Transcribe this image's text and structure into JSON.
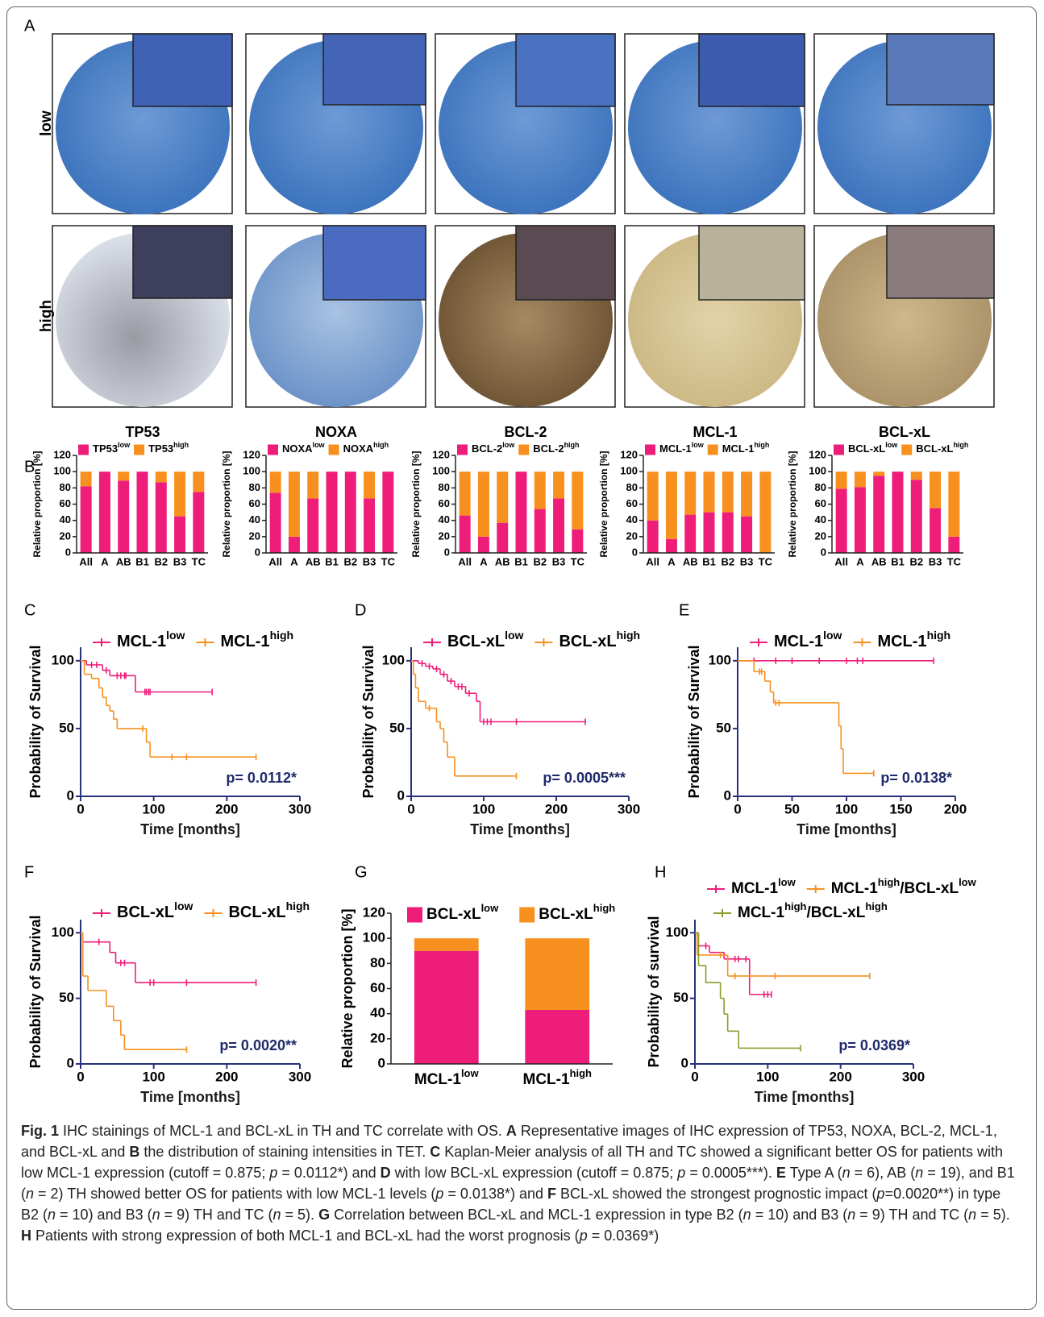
{
  "panel_labels": [
    "A",
    "B",
    "C",
    "D",
    "E",
    "F",
    "G",
    "H"
  ],
  "panel_a": {
    "row_labels": [
      "low",
      "high"
    ],
    "column_labels": [
      "TP53",
      "NOXA",
      "BCL-2",
      "MCL-1",
      "BCL-xL"
    ]
  },
  "chart_data": [
    {
      "type": "stacked_bar",
      "categories": [
        "All",
        "A",
        "AB",
        "B1",
        "B2",
        "B3",
        "TC"
      ],
      "ylabel": "Relative proportion [%]",
      "ylim": [
        0,
        120
      ],
      "yticks": [
        0,
        20,
        40,
        60,
        80,
        100,
        120
      ],
      "series": [
        {
          "name_parts": [
            "TP53",
            "low"
          ],
          "color": "#ee1d7a",
          "values": [
            82,
            100,
            89,
            100,
            87,
            45,
            75
          ]
        },
        {
          "name_parts": [
            "TP53",
            "high"
          ],
          "color": "#f7901e",
          "values": [
            18,
            0,
            11,
            0,
            13,
            55,
            25
          ]
        }
      ]
    },
    {
      "type": "stacked_bar",
      "categories": [
        "All",
        "A",
        "AB",
        "B1",
        "B2",
        "B3",
        "TC"
      ],
      "ylabel": "Relative proportion [%]",
      "ylim": [
        0,
        120
      ],
      "yticks": [
        0,
        20,
        40,
        60,
        80,
        100,
        120
      ],
      "series": [
        {
          "name_parts": [
            "NOXA",
            "low"
          ],
          "color": "#ee1d7a",
          "values": [
            74,
            20,
            67,
            100,
            100,
            67,
            100
          ]
        },
        {
          "name_parts": [
            "NOXA",
            "high"
          ],
          "color": "#f7901e",
          "values": [
            26,
            80,
            33,
            0,
            0,
            33,
            0
          ]
        }
      ]
    },
    {
      "type": "stacked_bar",
      "categories": [
        "All",
        "A",
        "AB",
        "B1",
        "B2",
        "B3",
        "TC"
      ],
      "ylabel": "Relative proportion [%]",
      "ylim": [
        0,
        120
      ],
      "yticks": [
        0,
        20,
        40,
        60,
        80,
        100,
        120
      ],
      "series": [
        {
          "name_parts": [
            "BCL-2",
            "low"
          ],
          "color": "#ee1d7a",
          "values": [
            46,
            20,
            37,
            100,
            54,
            67,
            29
          ]
        },
        {
          "name_parts": [
            "BCL-2",
            "high"
          ],
          "color": "#f7901e",
          "values": [
            54,
            80,
            63,
            0,
            46,
            33,
            71
          ]
        }
      ]
    },
    {
      "type": "stacked_bar",
      "categories": [
        "All",
        "A",
        "AB",
        "B1",
        "B2",
        "B3",
        "TC"
      ],
      "ylabel": "Relative proportion [%]",
      "ylim": [
        0,
        120
      ],
      "yticks": [
        0,
        20,
        40,
        60,
        80,
        100,
        120
      ],
      "series": [
        {
          "name_parts": [
            "MCL-1",
            "low"
          ],
          "color": "#ee1d7a",
          "values": [
            40,
            17,
            47,
            50,
            50,
            45,
            0
          ]
        },
        {
          "name_parts": [
            "MCL-1",
            "high"
          ],
          "color": "#f7901e",
          "values": [
            60,
            83,
            53,
            50,
            50,
            55,
            100
          ]
        }
      ]
    },
    {
      "type": "stacked_bar",
      "categories": [
        "All",
        "A",
        "AB",
        "B1",
        "B2",
        "B3",
        "TC"
      ],
      "ylabel": "Relative proportion [%]",
      "ylim": [
        0,
        120
      ],
      "yticks": [
        0,
        20,
        40,
        60,
        80,
        100,
        120
      ],
      "series": [
        {
          "name_parts": [
            "BCL-xL",
            "low"
          ],
          "color": "#ee1d7a",
          "values": [
            79,
            81,
            95,
            100,
            90,
            55,
            20
          ]
        },
        {
          "name_parts": [
            "BCL-xL",
            "high"
          ],
          "color": "#f7901e",
          "values": [
            21,
            19,
            5,
            0,
            10,
            45,
            80
          ]
        }
      ]
    },
    {
      "type": "line",
      "step": true,
      "xlabel": "Time [months]",
      "ylabel": "Probability of Survival",
      "annotation": "p= 0.0112*",
      "xlim": [
        0,
        300
      ],
      "xticks": [
        0,
        100,
        200,
        300
      ],
      "ylim": [
        0,
        110
      ],
      "yticks": [
        0,
        50,
        100
      ],
      "series": [
        {
          "name_parts": [
            "MCL-1",
            "low"
          ],
          "color": "#ee1d7a",
          "x": [
            0,
            8,
            30,
            40,
            75,
            180
          ],
          "values": [
            100,
            97,
            93,
            89,
            77,
            77
          ],
          "censor_x": [
            15,
            22,
            35,
            50,
            55,
            60,
            62,
            88,
            90,
            93,
            95,
            180
          ],
          "censor_values": [
            97,
            97,
            93,
            89,
            89,
            89,
            89,
            77,
            77,
            77,
            77,
            77
          ]
        },
        {
          "name_parts": [
            "MCL-1",
            "high"
          ],
          "color": "#f7901e",
          "x": [
            0,
            5,
            15,
            25,
            30,
            35,
            40,
            45,
            50,
            90,
            95,
            240
          ],
          "values": [
            100,
            90,
            87,
            80,
            73,
            67,
            63,
            57,
            50,
            40,
            29,
            29
          ],
          "censor_x": [
            85,
            125,
            145,
            240
          ],
          "censor_values": [
            50,
            29,
            29,
            29
          ]
        }
      ]
    },
    {
      "type": "line",
      "step": true,
      "xlabel": "Time [months]",
      "ylabel": "Probability of Survival",
      "annotation": "p= 0.0005***",
      "xlim": [
        0,
        300
      ],
      "xticks": [
        0,
        100,
        200,
        300
      ],
      "ylim": [
        0,
        110
      ],
      "yticks": [
        0,
        50,
        100
      ],
      "series": [
        {
          "name_parts": [
            "BCL-xL",
            "low"
          ],
          "color": "#ee1d7a",
          "x": [
            0,
            10,
            20,
            30,
            40,
            50,
            60,
            75,
            90,
            95,
            240
          ],
          "values": [
            100,
            98,
            96,
            94,
            90,
            85,
            81,
            76,
            70,
            55,
            55
          ],
          "censor_x": [
            15,
            25,
            35,
            45,
            55,
            65,
            70,
            80,
            100,
            105,
            110,
            145,
            240
          ],
          "censor_values": [
            98,
            96,
            94,
            90,
            85,
            81,
            81,
            76,
            55,
            55,
            55,
            55,
            55
          ]
        },
        {
          "name_parts": [
            "BCL-xL",
            "high"
          ],
          "color": "#f7901e",
          "x": [
            0,
            3,
            6,
            10,
            20,
            35,
            40,
            45,
            50,
            60,
            145
          ],
          "values": [
            100,
            90,
            80,
            70,
            65,
            55,
            50,
            40,
            29,
            15,
            15
          ],
          "censor_x": [
            25,
            145
          ],
          "censor_values": [
            65,
            15
          ]
        }
      ]
    },
    {
      "type": "line",
      "step": true,
      "xlabel": "Time [months]",
      "ylabel": "Probability of Survival",
      "annotation": "p= 0.0138*",
      "xlim": [
        0,
        200
      ],
      "xticks": [
        0,
        50,
        100,
        150,
        200
      ],
      "ylim": [
        0,
        110
      ],
      "yticks": [
        0,
        50,
        100
      ],
      "series": [
        {
          "name_parts": [
            "MCL-1",
            "low"
          ],
          "color": "#ee1d7a",
          "x": [
            0,
            180
          ],
          "values": [
            100,
            100
          ],
          "censor_x": [
            15,
            35,
            50,
            75,
            100,
            110,
            115,
            180
          ],
          "censor_values": [
            100,
            100,
            100,
            100,
            100,
            100,
            100,
            100
          ]
        },
        {
          "name_parts": [
            "MCL-1",
            "high"
          ],
          "color": "#f7901e",
          "x": [
            0,
            15,
            25,
            30,
            33,
            93,
            95,
            97,
            125
          ],
          "values": [
            100,
            92,
            85,
            77,
            69,
            52,
            35,
            17,
            17
          ],
          "censor_x": [
            20,
            22,
            35,
            38,
            125
          ],
          "censor_values": [
            92,
            92,
            69,
            69,
            17
          ]
        }
      ]
    },
    {
      "type": "line",
      "step": true,
      "xlabel": "Time [months]",
      "ylabel": "Probability of Survival",
      "annotation": "p= 0.0020**",
      "xlim": [
        0,
        300
      ],
      "xticks": [
        0,
        100,
        200,
        300
      ],
      "ylim": [
        0,
        110
      ],
      "yticks": [
        0,
        50,
        100
      ],
      "series": [
        {
          "name_parts": [
            "BCL-xL",
            "low"
          ],
          "color": "#ee1d7a",
          "x": [
            0,
            3,
            40,
            48,
            75,
            240
          ],
          "values": [
            100,
            93,
            85,
            77,
            62,
            62
          ],
          "censor_x": [
            25,
            55,
            60,
            95,
            100,
            145,
            240
          ],
          "censor_values": [
            93,
            77,
            77,
            62,
            62,
            62,
            62
          ]
        },
        {
          "name_parts": [
            "BCL-xL",
            "high"
          ],
          "color": "#f7901e",
          "x": [
            0,
            3,
            10,
            35,
            45,
            55,
            60,
            145
          ],
          "values": [
            100,
            67,
            56,
            44,
            33,
            22,
            11,
            11
          ],
          "censor_x": [
            145
          ],
          "censor_values": [
            11
          ]
        }
      ]
    },
    {
      "type": "stacked_bar",
      "categories": [
        "MCL-1",
        "MCL-1"
      ],
      "category_sups": [
        "low",
        "high"
      ],
      "ylabel": "Relative proportion [%]",
      "ylim": [
        0,
        120
      ],
      "yticks": [
        0,
        20,
        40,
        60,
        80,
        100,
        120
      ],
      "series": [
        {
          "name_parts": [
            "BCL-xL",
            "low"
          ],
          "color": "#ee1d7a",
          "values": [
            90,
            43
          ]
        },
        {
          "name_parts": [
            "BCL-xL",
            "high"
          ],
          "color": "#f7901e",
          "values": [
            10,
            57
          ]
        }
      ]
    },
    {
      "type": "line",
      "step": true,
      "xlabel": "Time [months]",
      "ylabel": "Probability of survival",
      "annotation": "p= 0.0369*",
      "xlim": [
        0,
        300
      ],
      "xticks": [
        0,
        100,
        200,
        300
      ],
      "ylim": [
        0,
        110
      ],
      "yticks": [
        0,
        50,
        100
      ],
      "series": [
        {
          "name_parts": [
            "MCL-1",
            "low"
          ],
          "color": "#ee1d7a",
          "x": [
            0,
            3,
            20,
            40,
            75,
            105
          ],
          "values": [
            100,
            90,
            85,
            80,
            53,
            53
          ],
          "censor_x": [
            15,
            45,
            55,
            60,
            70,
            95,
            100,
            105
          ],
          "censor_values": [
            90,
            80,
            80,
            80,
            80,
            53,
            53,
            53
          ]
        },
        {
          "name_parts": [
            "MCL-1",
            "high",
            "/BCL-xL",
            "low"
          ],
          "color": "#f7901e",
          "x": [
            0,
            3,
            45,
            240
          ],
          "values": [
            100,
            83,
            67,
            67
          ],
          "censor_x": [
            35,
            55,
            110,
            240
          ],
          "censor_values": [
            83,
            67,
            67,
            67
          ]
        },
        {
          "name_parts": [
            "MCL-1",
            "high",
            "/BCL-xL",
            "high"
          ],
          "color": "#8f9a2a",
          "x": [
            0,
            5,
            15,
            35,
            40,
            45,
            60,
            145
          ],
          "values": [
            100,
            75,
            62,
            50,
            38,
            25,
            12,
            12
          ],
          "censor_x": [
            145
          ],
          "censor_values": [
            12
          ]
        }
      ]
    }
  ],
  "caption": [
    {
      "text": "Fig. 1",
      "style": "b"
    },
    {
      "text": " IHC stainings of MCL-1 and BCL-xL in TH and TC correlate with OS. ",
      "style": "r"
    },
    {
      "text": "A",
      "style": "b"
    },
    {
      "text": " Representative images of IHC expression of TP53, NOXA, BCL-2, MCL-1, and BCL-xL and ",
      "style": "r"
    },
    {
      "text": "B",
      "style": "b"
    },
    {
      "text": " the distribution of staining intensities in TET. ",
      "style": "r"
    },
    {
      "text": "C",
      "style": "b"
    },
    {
      "text": " Kaplan-Meier analysis of all TH and TC showed a significant better OS for patients with low MCL-1 expression (cutoff = 0.875; ",
      "style": "r"
    },
    {
      "text": "p",
      "style": "i"
    },
    {
      "text": " = 0.0112*) and ",
      "style": "r"
    },
    {
      "text": "D",
      "style": "b"
    },
    {
      "text": " with low BCL-xL expression (cutoff = 0.875; ",
      "style": "r"
    },
    {
      "text": "p",
      "style": "i"
    },
    {
      "text": " = 0.0005***). ",
      "style": "r"
    },
    {
      "text": "E",
      "style": "b"
    },
    {
      "text": " Type A (",
      "style": "r"
    },
    {
      "text": "n",
      "style": "i"
    },
    {
      "text": " = 6), AB (",
      "style": "r"
    },
    {
      "text": "n",
      "style": "i"
    },
    {
      "text": " = 19), and B1 (",
      "style": "r"
    },
    {
      "text": "n",
      "style": "i"
    },
    {
      "text": " = 2) TH showed better OS for patients with low MCL-1 levels (",
      "style": "r"
    },
    {
      "text": "p",
      "style": "i"
    },
    {
      "text": " = 0.0138*) and ",
      "style": "r"
    },
    {
      "text": "F",
      "style": "b"
    },
    {
      "text": " BCL-xL showed the strongest prognostic impact (",
      "style": "r"
    },
    {
      "text": "p",
      "style": "i"
    },
    {
      "text": "=0.0020**) in type B2 (",
      "style": "r"
    },
    {
      "text": "n",
      "style": "i"
    },
    {
      "text": " = 10) and B3 (",
      "style": "r"
    },
    {
      "text": "n",
      "style": "i"
    },
    {
      "text": " = 9) TH and TC (",
      "style": "r"
    },
    {
      "text": "n",
      "style": "i"
    },
    {
      "text": " = 5). ",
      "style": "r"
    },
    {
      "text": "G",
      "style": "b"
    },
    {
      "text": " Correlation between BCL-xL and MCL-1 expression in type B2 (",
      "style": "r"
    },
    {
      "text": "n",
      "style": "i"
    },
    {
      "text": " = 10) and B3 (",
      "style": "r"
    },
    {
      "text": "n",
      "style": "i"
    },
    {
      "text": " = 9) TH and TC (",
      "style": "r"
    },
    {
      "text": "n",
      "style": "i"
    },
    {
      "text": " = 5). ",
      "style": "r"
    },
    {
      "text": "H",
      "style": "b"
    },
    {
      "text": " Patients with strong expression of both MCL-1 and BCL-xL had the worst prognosis (",
      "style": "r"
    },
    {
      "text": "p",
      "style": "i"
    },
    {
      "text": " = 0.0369*)",
      "style": "r"
    }
  ]
}
